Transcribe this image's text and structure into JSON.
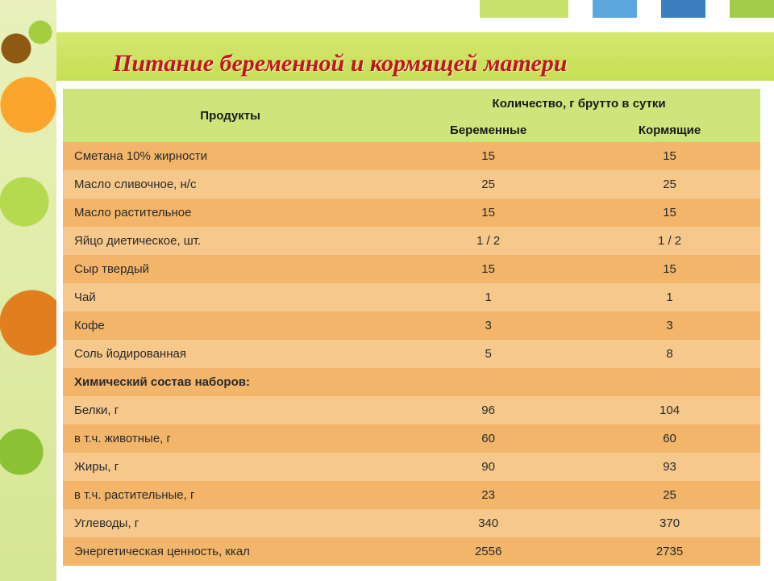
{
  "title": "Питание беременной и кормящей матери",
  "colors": {
    "title_text": "#c21717",
    "title_band": "#cde35f",
    "header_bg": "#cfe47a",
    "row_odd": "#f2b569",
    "row_even": "#f6c88c",
    "topbar": [
      "#c6e26a",
      "#5aa6dd",
      "#3b7fbf",
      "#a0cc4a"
    ]
  },
  "fonts": {
    "title_family": "Times New Roman",
    "title_size_pt": 22,
    "body_size_pt": 11
  },
  "table": {
    "type": "table",
    "header": {
      "col1": "Продукты",
      "col_group": "Количество, г брутто в сутки",
      "sub1": "Беременные",
      "sub2": "Кормящие"
    },
    "rows": [
      {
        "label": "Сметана 10% жирности",
        "v1": "15",
        "v2": "15"
      },
      {
        "label": "Масло сливочное, н/с",
        "v1": "25",
        "v2": "25"
      },
      {
        "label": "Масло растительное",
        "v1": "15",
        "v2": "15"
      },
      {
        "label": "Яйцо диетическое, шт.",
        "v1": "1 / 2",
        "v2": "1 / 2"
      },
      {
        "label": "Сыр твердый",
        "v1": "15",
        "v2": "15"
      },
      {
        "label": "Чай",
        "v1": "1",
        "v2": "1"
      },
      {
        "label": "Кофе",
        "v1": "3",
        "v2": "3"
      },
      {
        "label": "Соль йодированная",
        "v1": "5",
        "v2": "8"
      },
      {
        "section": true,
        "label": "Химический состав наборов:"
      },
      {
        "label": "Белки, г",
        "v1": "96",
        "v2": "104"
      },
      {
        "label": "в т.ч. животные, г",
        "v1": "60",
        "v2": "60"
      },
      {
        "label": "Жиры, г",
        "v1": "90",
        "v2": "93"
      },
      {
        "label": "в т.ч. растительные, г",
        "v1": "23",
        "v2": "25"
      },
      {
        "label": "Углеводы, г",
        "v1": "340",
        "v2": "370"
      },
      {
        "label": "Энергетическая ценность, ккал",
        "v1": "2556",
        "v2": "2735"
      }
    ]
  }
}
